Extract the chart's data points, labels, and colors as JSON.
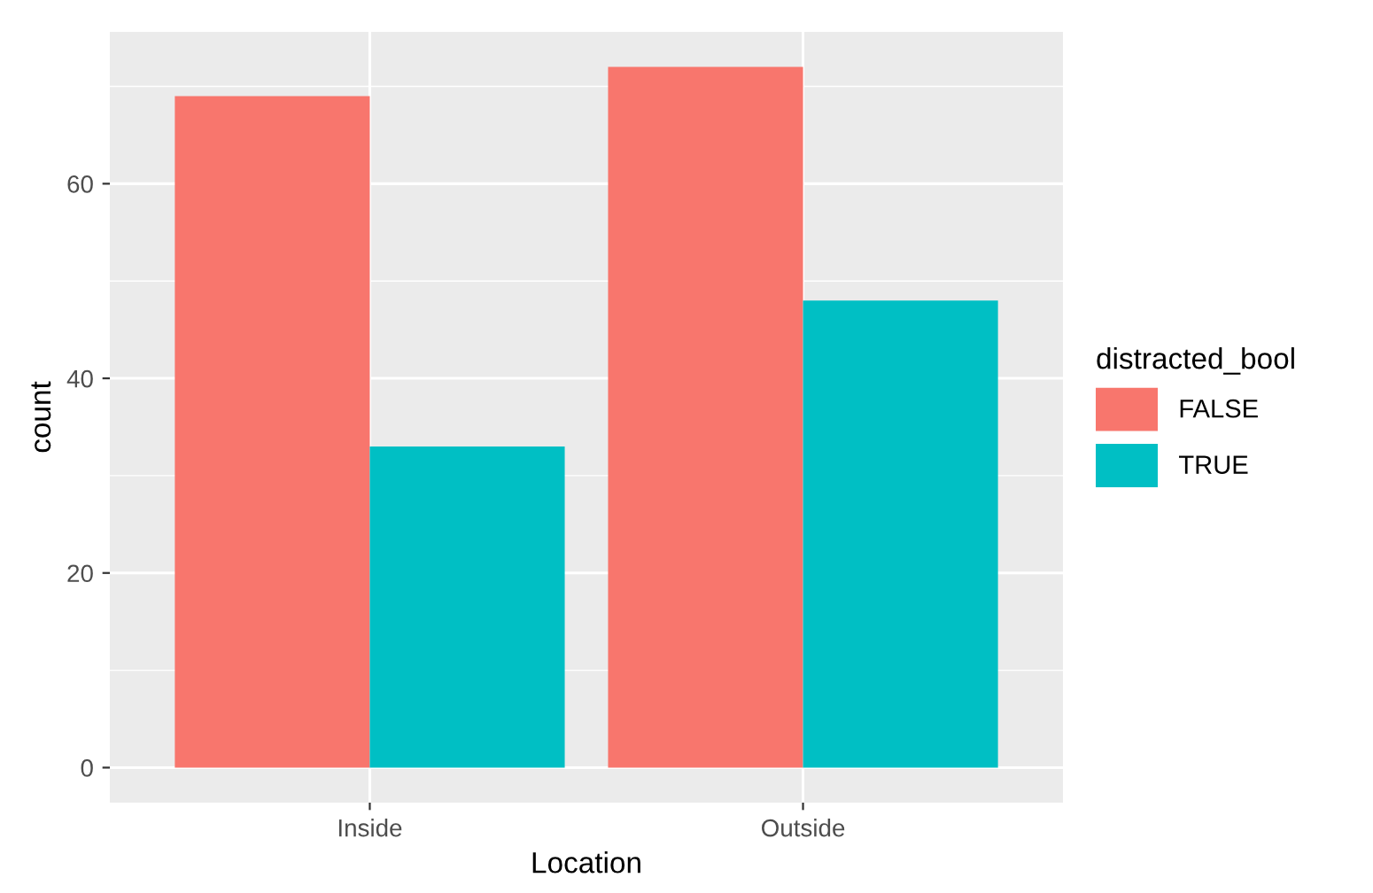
{
  "chart_data": {
    "type": "bar",
    "xlabel": "Location",
    "ylabel": "count",
    "legend_title": "distracted_bool",
    "categories": [
      "Inside",
      "Outside"
    ],
    "series": [
      {
        "name": "FALSE",
        "color": "#f8766d",
        "values": [
          69,
          72
        ]
      },
      {
        "name": "TRUE",
        "color": "#00bfc4",
        "values": [
          33,
          48
        ]
      }
    ],
    "ylim": [
      -3.6,
      75.6
    ],
    "yticks": [
      0,
      20,
      40,
      60,
      {
        "value": 10,
        "label": null
      },
      {
        "value": 30,
        "label": null
      },
      {
        "value": 50,
        "label": null
      },
      {
        "value": 70,
        "label": null
      }
    ],
    "grid": true,
    "legend": "right"
  }
}
